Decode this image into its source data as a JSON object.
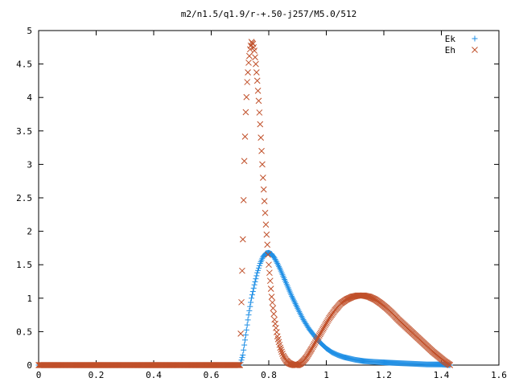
{
  "chart_data": {
    "type": "scatter",
    "title": "m2/n1.5/q1.9/r-+.50-j257/M5.0/512",
    "xlabel": "",
    "ylabel": "",
    "xlim": [
      0,
      1.6
    ],
    "ylim": [
      0,
      5
    ],
    "xticks": [
      "0",
      "0.2",
      "0.4",
      "0.6",
      "0.8",
      "1",
      "1.2",
      "1.4",
      "1.6"
    ],
    "yticks": [
      "0",
      "0.5",
      "1",
      "1.5",
      "2",
      "2.5",
      "3",
      "3.5",
      "4",
      "4.5",
      "5"
    ],
    "grid": false,
    "legend_position": "top-right",
    "series": [
      {
        "name": "Ek",
        "marker": "plus",
        "color": "#1f8fe5",
        "x": [
          0.0,
          0.1,
          0.2,
          0.3,
          0.4,
          0.5,
          0.6,
          0.7,
          0.71,
          0.72,
          0.73,
          0.74,
          0.75,
          0.76,
          0.77,
          0.78,
          0.79,
          0.8,
          0.81,
          0.82,
          0.83,
          0.84,
          0.85,
          0.86,
          0.87,
          0.88,
          0.89,
          0.9,
          0.92,
          0.94,
          0.96,
          0.98,
          1.0,
          1.02,
          1.04,
          1.06,
          1.08,
          1.1,
          1.13,
          1.16,
          1.2,
          1.25,
          1.3,
          1.35,
          1.4,
          1.43
        ],
        "y": [
          0,
          0,
          0,
          0,
          0,
          0,
          0,
          0,
          0.15,
          0.45,
          0.75,
          1.0,
          1.2,
          1.38,
          1.52,
          1.62,
          1.67,
          1.68,
          1.66,
          1.6,
          1.52,
          1.43,
          1.33,
          1.23,
          1.13,
          1.03,
          0.94,
          0.85,
          0.68,
          0.54,
          0.43,
          0.33,
          0.25,
          0.19,
          0.15,
          0.12,
          0.1,
          0.08,
          0.06,
          0.05,
          0.04,
          0.03,
          0.02,
          0.01,
          0.01,
          0.0
        ]
      },
      {
        "name": "Eh",
        "marker": "cross",
        "color": "#c0502a",
        "x": [
          0.0,
          0.1,
          0.2,
          0.3,
          0.4,
          0.5,
          0.6,
          0.7,
          0.71,
          0.715,
          0.72,
          0.725,
          0.73,
          0.735,
          0.74,
          0.745,
          0.75,
          0.755,
          0.76,
          0.765,
          0.77,
          0.775,
          0.78,
          0.79,
          0.8,
          0.81,
          0.82,
          0.83,
          0.84,
          0.85,
          0.86,
          0.87,
          0.88,
          0.89,
          0.9,
          0.91,
          0.92,
          0.93,
          0.94,
          0.95,
          0.97,
          0.99,
          1.01,
          1.03,
          1.05,
          1.07,
          1.09,
          1.11,
          1.13,
          1.15,
          1.17,
          1.19,
          1.21,
          1.23,
          1.25,
          1.27,
          1.29,
          1.31,
          1.33,
          1.35,
          1.37,
          1.39,
          1.41,
          1.43
        ],
        "y": [
          0,
          0,
          0,
          0,
          0,
          0,
          0,
          0,
          1.88,
          3.05,
          3.78,
          4.23,
          4.52,
          4.72,
          4.83,
          4.8,
          4.7,
          4.5,
          4.25,
          3.95,
          3.6,
          3.2,
          2.8,
          2.1,
          1.5,
          1.02,
          0.68,
          0.43,
          0.26,
          0.14,
          0.07,
          0.03,
          0.01,
          0.0,
          0.0,
          0.02,
          0.06,
          0.11,
          0.18,
          0.25,
          0.4,
          0.55,
          0.7,
          0.82,
          0.92,
          0.98,
          1.02,
          1.04,
          1.04,
          1.02,
          0.98,
          0.92,
          0.85,
          0.77,
          0.68,
          0.6,
          0.52,
          0.44,
          0.36,
          0.28,
          0.2,
          0.13,
          0.06,
          0.0
        ]
      }
    ]
  }
}
